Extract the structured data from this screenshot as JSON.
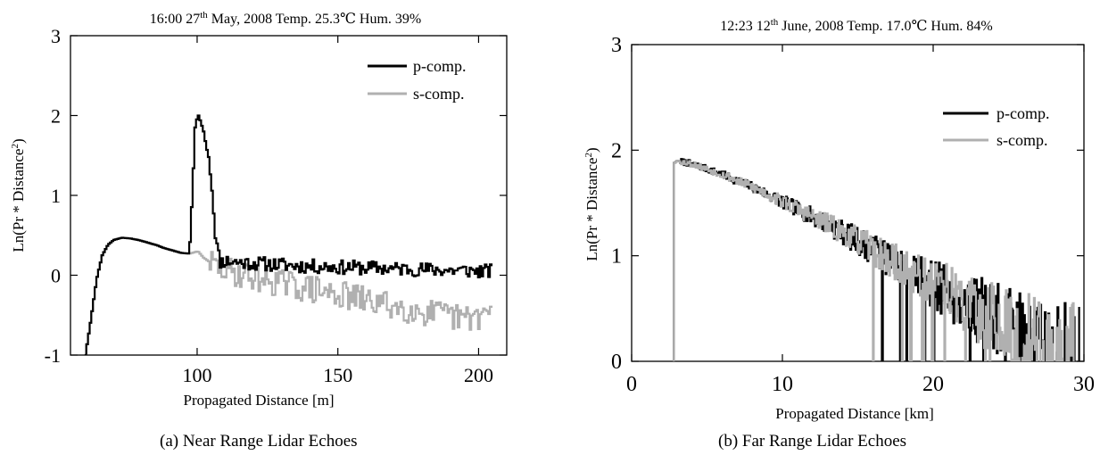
{
  "chart_data": [
    {
      "type": "line",
      "title": "16:00 27th May, 2008 Temp. 25.3℃  Hum. 39%",
      "title_parts": {
        "pre": "16:00 27",
        "sup": "th",
        "post": " May, 2008 Temp. 25.3℃  Hum. 39%"
      },
      "xlabel": "Propagated Distance [m]",
      "ylabel": "Ln(Pr * Distance",
      "ylabel_sup": "2",
      "ylabel_close": ")",
      "caption": "(a) Near Range Lidar Echoes",
      "xlim": [
        55,
        210
      ],
      "ylim": [
        -1,
        3
      ],
      "xticks": [
        100,
        150,
        200
      ],
      "xtick_labels": [
        "100",
        "150",
        "200"
      ],
      "yticks": [
        -1,
        0,
        1,
        2,
        3
      ],
      "ytick_labels": [
        "-1",
        "0",
        "1",
        "2",
        "3"
      ],
      "grid": false,
      "legend_position": "top-right",
      "series": [
        {
          "name": "p-comp.",
          "color": "#000000",
          "x": [
            60,
            62,
            64,
            66,
            68,
            70,
            73,
            76,
            79,
            82,
            85,
            88,
            91,
            94,
            97,
            98,
            99,
            100,
            101,
            102,
            103,
            104,
            105,
            106,
            107,
            108,
            110,
            115,
            120,
            125,
            130,
            135,
            140,
            145,
            150,
            155,
            160,
            165,
            170,
            175,
            180,
            185,
            190,
            195,
            200,
            205
          ],
          "y": [
            -1.0,
            -0.55,
            -0.05,
            0.25,
            0.38,
            0.44,
            0.47,
            0.46,
            0.44,
            0.41,
            0.38,
            0.34,
            0.31,
            0.28,
            0.27,
            1.0,
            1.85,
            2.02,
            1.92,
            1.8,
            1.6,
            1.45,
            1.1,
            0.6,
            0.3,
            0.17,
            0.18,
            0.16,
            0.15,
            0.14,
            0.13,
            0.12,
            0.11,
            0.11,
            0.1,
            0.1,
            0.09,
            0.09,
            0.08,
            0.08,
            0.07,
            0.07,
            0.06,
            0.06,
            0.05,
            0.05
          ]
        },
        {
          "name": "s-comp.",
          "color": "#b0b0b0",
          "x": [
            60,
            62,
            64,
            66,
            68,
            70,
            73,
            76,
            79,
            82,
            85,
            88,
            91,
            94,
            97,
            100,
            102,
            104,
            106,
            108,
            110,
            115,
            120,
            125,
            130,
            135,
            140,
            145,
            150,
            155,
            160,
            165,
            170,
            175,
            180,
            185,
            190,
            195,
            200,
            205
          ],
          "y": [
            -1.0,
            -0.55,
            -0.05,
            0.25,
            0.38,
            0.44,
            0.47,
            0.46,
            0.44,
            0.41,
            0.38,
            0.34,
            0.31,
            0.28,
            0.27,
            0.3,
            0.22,
            0.17,
            0.12,
            0.09,
            0.06,
            0.02,
            -0.02,
            -0.06,
            -0.1,
            -0.14,
            -0.17,
            -0.21,
            -0.24,
            -0.28,
            -0.32,
            -0.35,
            -0.39,
            -0.42,
            -0.46,
            -0.49,
            -0.52,
            -0.55,
            -0.5,
            -0.45
          ]
        }
      ]
    },
    {
      "type": "line",
      "title": "12:23 12th June, 2008 Temp. 17.0℃  Hum. 84%",
      "title_parts": {
        "pre": "12:23 12",
        "sup": "th",
        "post": " June, 2008 Temp. 17.0℃  Hum. 84%"
      },
      "xlabel": "Propagated Distance [km]",
      "ylabel": "Ln(Pr * Distance",
      "ylabel_sup": "2",
      "ylabel_close": ")",
      "caption": "(b) Far Range Lidar Echoes",
      "xlim": [
        0,
        30
      ],
      "ylim": [
        0,
        3
      ],
      "xticks": [
        0,
        10,
        20,
        30
      ],
      "xtick_labels": [
        "0",
        "10",
        "20",
        "30"
      ],
      "yticks": [
        0,
        1,
        2,
        3
      ],
      "ytick_labels": [
        "0",
        "1",
        "2",
        "3"
      ],
      "grid": false,
      "legend_position": "top-right",
      "series": [
        {
          "name": "p-comp.",
          "color": "#000000",
          "x": [
            2.8,
            2.85,
            3,
            4,
            5,
            6,
            7,
            8,
            9,
            10,
            11,
            12,
            13,
            14,
            15,
            16,
            17,
            18,
            19,
            20,
            21,
            22,
            23,
            24,
            25,
            26,
            27,
            28,
            29,
            29.7
          ],
          "y": [
            0.0,
            1.88,
            1.9,
            1.87,
            1.82,
            1.77,
            1.71,
            1.65,
            1.58,
            1.51,
            1.44,
            1.37,
            1.3,
            1.22,
            1.14,
            1.06,
            0.98,
            0.9,
            0.81,
            0.73,
            0.65,
            0.56,
            0.48,
            0.4,
            0.32,
            0.24,
            0.17,
            0.11,
            0.06,
            0.02
          ]
        },
        {
          "name": "s-comp.",
          "color": "#b0b0b0",
          "x": [
            2.8,
            2.85,
            3,
            4,
            5,
            6,
            7,
            8,
            9,
            10,
            11,
            12,
            13,
            14,
            15,
            16,
            17,
            18,
            19,
            20,
            21,
            22,
            23,
            24,
            25,
            26,
            27,
            28,
            29,
            29.7
          ],
          "y": [
            0.0,
            1.88,
            1.9,
            1.87,
            1.82,
            1.77,
            1.71,
            1.65,
            1.58,
            1.51,
            1.44,
            1.37,
            1.3,
            1.22,
            1.14,
            1.06,
            0.98,
            0.9,
            0.81,
            0.73,
            0.65,
            0.56,
            0.48,
            0.4,
            0.32,
            0.24,
            0.17,
            0.11,
            0.06,
            0.02
          ]
        }
      ]
    }
  ]
}
